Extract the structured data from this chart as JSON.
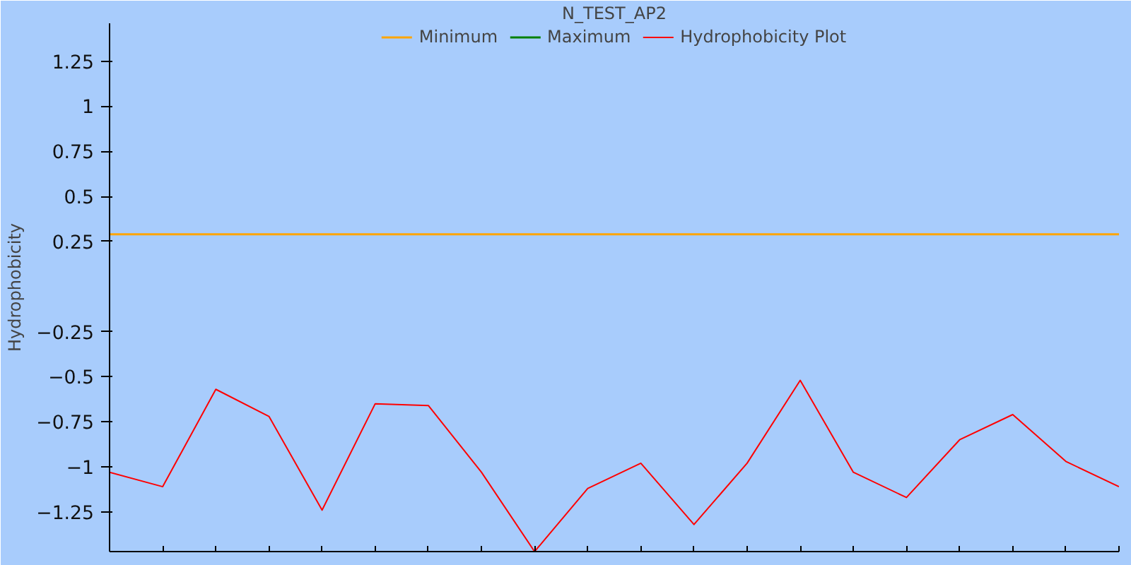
{
  "chart_data": {
    "type": "line",
    "title": "N_TEST_AP2",
    "ylabel": "Hydrophobicity",
    "categories": [
      null,
      null,
      null,
      null,
      null,
      null,
      null,
      null,
      null,
      null,
      null,
      null,
      null,
      null,
      null,
      null,
      null,
      null,
      null,
      null
    ],
    "series": [
      {
        "name": "Minimum",
        "color": "#ffa500",
        "values": [
          0.29,
          0.29,
          0.29,
          0.29,
          0.29,
          0.29,
          0.29,
          0.29,
          0.29,
          0.29,
          0.29,
          0.29,
          0.29,
          0.29,
          0.29,
          0.29,
          0.29,
          0.29,
          0.29,
          0.29
        ]
      },
      {
        "name": "Maximum",
        "color": "#008000",
        "values": [
          null,
          null,
          null,
          null,
          null,
          null,
          null,
          null,
          null,
          null,
          null,
          null,
          null,
          null,
          null,
          null,
          null,
          null,
          null,
          null
        ]
      },
      {
        "name": "Hydrophobicity Plot",
        "color": "#ff0000",
        "values": [
          -1.03,
          -1.11,
          -0.57,
          -0.72,
          -1.24,
          -0.65,
          -0.66,
          -1.03,
          -1.47,
          -1.12,
          -0.98,
          -1.32,
          -0.98,
          -0.52,
          -1.03,
          -1.17,
          -0.85,
          -0.71,
          -0.97,
          -1.11
        ]
      }
    ],
    "ylim": [
      -1.47,
      1.46
    ],
    "yticks": [
      -1.25,
      -1,
      -0.75,
      -0.5,
      -0.25,
      0.25,
      0.5,
      0.75,
      1,
      1.25
    ],
    "tick_labels": "y",
    "grid": false,
    "legend": "top",
    "marker": "none",
    "line_style": "solid"
  }
}
